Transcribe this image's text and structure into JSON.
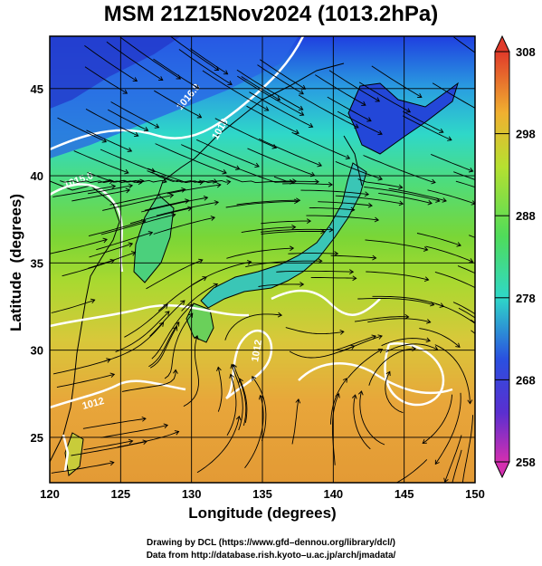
{
  "title": "MSM 21Z15Nov2024 (1013.2hPa)",
  "xaxis": {
    "label": "Longitude (degrees)",
    "ticks": [
      "120",
      "125",
      "130",
      "135",
      "140",
      "145",
      "150"
    ]
  },
  "yaxis": {
    "label": "Latitude  (degrees)",
    "ticks": [
      "25",
      "30",
      "35",
      "40",
      "45"
    ]
  },
  "colorbar": {
    "ticks": [
      "308",
      "298",
      "288",
      "278",
      "268",
      "258"
    ],
    "min": 258,
    "max": 308
  },
  "contour_labels": [
    "1016.0",
    "1015.0",
    "1018",
    "1012",
    "1012"
  ],
  "credits": {
    "line1": "Drawing by DCL (https://www.gfd–dennou.org/library/dcl/)",
    "line2": "Data from http://database.rish.kyoto–u.ac.jp/arch/jmadata/"
  },
  "colors": {
    "warm": "#e8a33a",
    "mid": "#7ad636",
    "cool": "#2fd8c8",
    "cold": "#2a50e0",
    "land_north": "#2244dd"
  }
}
